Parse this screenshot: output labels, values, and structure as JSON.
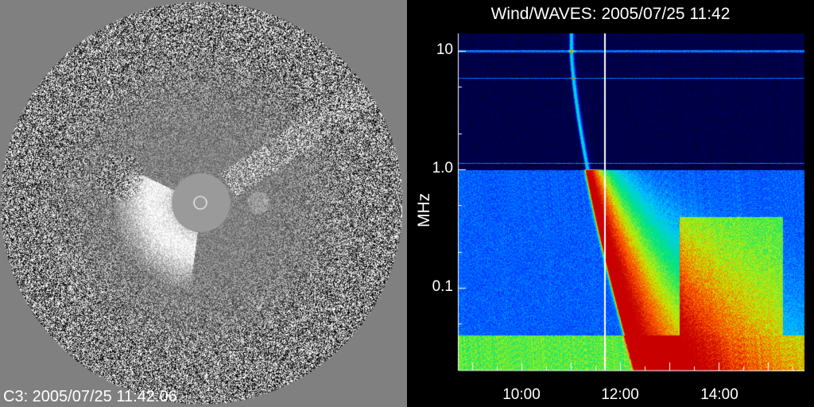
{
  "c3_panel": {
    "label": "C3: 2005/07/25 11:42:06"
  },
  "spectrogram": {
    "title": "Wind/WAVES: 2005/07/25 11:42",
    "ylabel": "MHz",
    "yticks": [
      "10",
      "1.0",
      "0.1"
    ],
    "xticks": [
      "10:00",
      "12:00",
      "14:00"
    ]
  },
  "chart_data": {
    "type": "heatmap",
    "title": "Wind/WAVES: 2005/07/25 11:42",
    "ylabel": "MHz",
    "y_scale": "log",
    "y_ticks": [
      10,
      1.0,
      0.1
    ],
    "x_ticks": [
      "10:00",
      "12:00",
      "14:00"
    ],
    "marker_time": "11:42"
  }
}
